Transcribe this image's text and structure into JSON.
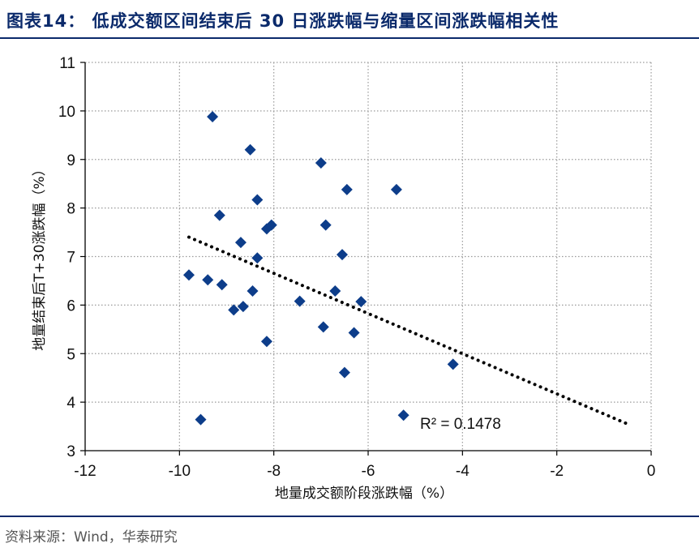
{
  "header": {
    "title": "图表14：  低成交额区间结束后 30 日涨跌幅与缩量区间涨跌幅相关性"
  },
  "footer": {
    "source": "资料来源：Wind，华泰研究"
  },
  "chart_data": {
    "type": "scatter",
    "xlabel": "地量成交额阶段涨跌幅（%）",
    "ylabel": "地量结束后T+30涨跌幅（%）",
    "xlim": [
      -12,
      0
    ],
    "ylim": [
      3,
      11
    ],
    "x_ticks": [
      -12,
      -10,
      -8,
      -6,
      -4,
      -2,
      0
    ],
    "y_ticks": [
      3,
      4,
      5,
      6,
      7,
      8,
      9,
      10,
      11
    ],
    "grid": true,
    "marker": "diamond",
    "marker_color": "#0d3d8a",
    "trendline": {
      "style": "dotted",
      "x": [
        -9.8,
        -0.5
      ],
      "y": [
        7.4,
        3.55
      ]
    },
    "annotation": "R² = 0.1478",
    "points": [
      {
        "x": -9.3,
        "y": 9.88
      },
      {
        "x": -8.5,
        "y": 9.2
      },
      {
        "x": -7.0,
        "y": 8.93
      },
      {
        "x": -6.45,
        "y": 8.38
      },
      {
        "x": -5.4,
        "y": 8.38
      },
      {
        "x": -8.35,
        "y": 8.17
      },
      {
        "x": -9.15,
        "y": 7.85
      },
      {
        "x": -8.05,
        "y": 7.65
      },
      {
        "x": -8.15,
        "y": 7.57
      },
      {
        "x": -6.9,
        "y": 7.65
      },
      {
        "x": -8.7,
        "y": 7.29
      },
      {
        "x": -6.55,
        "y": 7.04
      },
      {
        "x": -8.35,
        "y": 6.97
      },
      {
        "x": -9.8,
        "y": 6.62
      },
      {
        "x": -9.4,
        "y": 6.52
      },
      {
        "x": -9.1,
        "y": 6.42
      },
      {
        "x": -8.45,
        "y": 6.29
      },
      {
        "x": -6.7,
        "y": 6.29
      },
      {
        "x": -7.45,
        "y": 6.08
      },
      {
        "x": -6.15,
        "y": 6.07
      },
      {
        "x": -8.85,
        "y": 5.9
      },
      {
        "x": -8.65,
        "y": 5.97
      },
      {
        "x": -6.95,
        "y": 5.55
      },
      {
        "x": -6.3,
        "y": 5.43
      },
      {
        "x": -8.15,
        "y": 5.25
      },
      {
        "x": -4.2,
        "y": 4.78
      },
      {
        "x": -6.5,
        "y": 4.61
      },
      {
        "x": -5.25,
        "y": 3.73
      },
      {
        "x": -9.55,
        "y": 3.64
      }
    ]
  }
}
